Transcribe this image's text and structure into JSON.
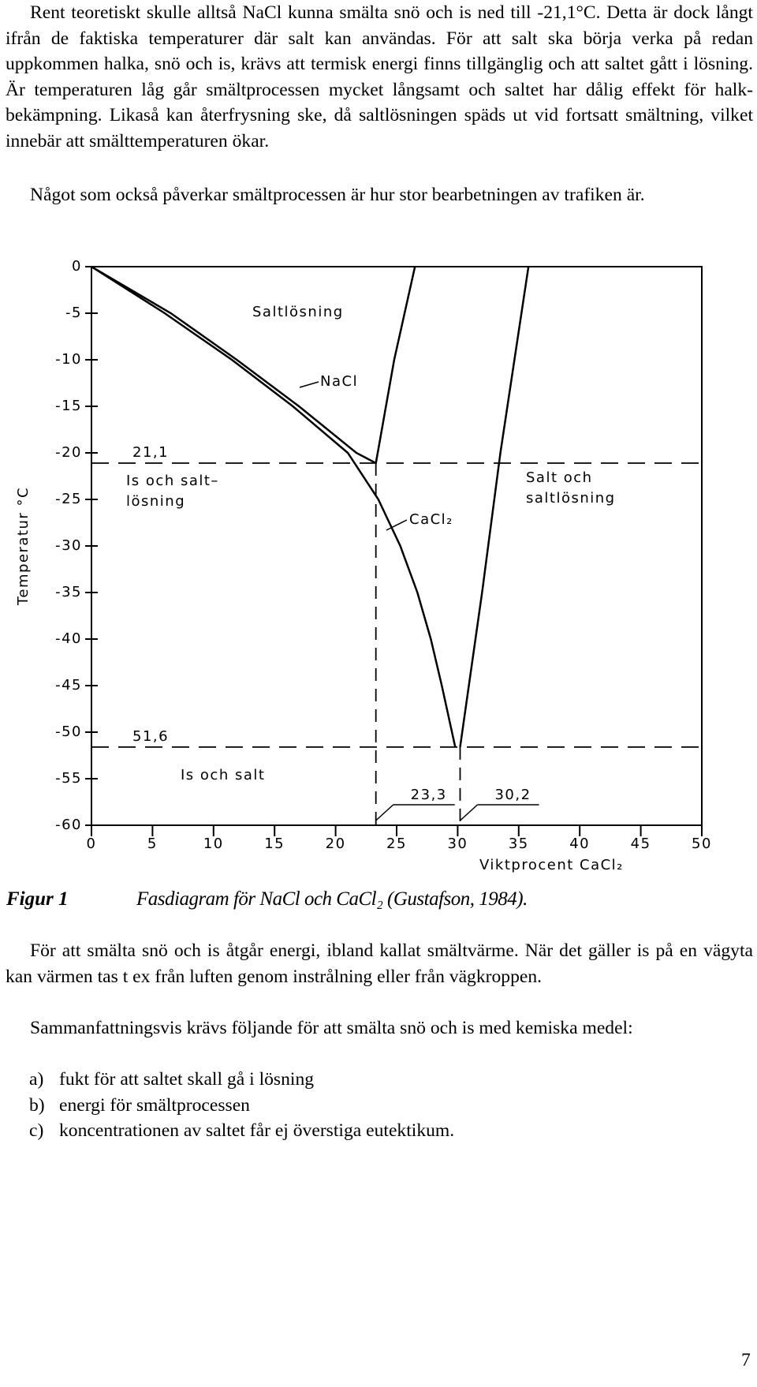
{
  "paragraphs_top": [
    "Rent teoretiskt skulle alltså NaCl kunna smälta snö och is ned till -21,1°C. Detta är dock långt ifrån de faktiska temperaturer där salt kan användas. För att salt ska börja verka på redan uppkommen halka, snö och is, krävs att termisk energi finns tillgänglig och att saltet gått i lösning. Är temperaturen låg går smältprocessen mycket långsamt och saltet har dålig effekt för halk-bekämpning. Likaså kan återfrysning ske, då saltlösningen späds ut vid fortsatt smältning, vilket innebär att smälttemperaturen ökar.",
    "Något som också påverkar smältprocessen är hur stor bearbetningen av trafiken är."
  ],
  "chart_data": {
    "type": "line",
    "xlabel": "Viktprocent CaCl₂",
    "ylabel": "Temperatur °C",
    "xlim": [
      0,
      50
    ],
    "ylim": [
      -60,
      0
    ],
    "xticks": [
      0,
      5,
      10,
      15,
      20,
      25,
      30,
      35,
      40,
      45,
      50
    ],
    "yticks": [
      0,
      -5,
      -10,
      -15,
      -20,
      -25,
      -30,
      -35,
      -40,
      -45,
      -50,
      -55,
      -60
    ],
    "color": "#000000",
    "series": [
      {
        "x": [
          0,
          6.5,
          11.9,
          17,
          21.7,
          23.3
        ],
        "values": [
          0,
          -5,
          -10,
          -15,
          -20,
          -21.1
        ]
      },
      {
        "x": [
          23.3,
          24.8,
          26.5
        ],
        "values": [
          -21.1,
          -10,
          0
        ]
      },
      {
        "x": [
          0,
          6,
          11.5,
          16.5,
          21,
          23.5,
          25.3,
          26.7,
          27.8,
          28.7,
          29.8
        ],
        "values": [
          0,
          -5,
          -10,
          -15,
          -20,
          -25,
          -30,
          -35,
          -40,
          -45,
          -51.6
        ]
      },
      {
        "x": [
          30.2,
          32,
          33.5,
          35.8
        ],
        "values": [
          -51.6,
          -35,
          -20,
          0
        ]
      }
    ],
    "eutectic_points": [
      {
        "x": 23.3,
        "y": -21.1,
        "x_label": "23,3",
        "y_label": "21,1"
      },
      {
        "x": 30.2,
        "y": -51.6,
        "x_label": "30,2",
        "y_label": "51,6"
      }
    ],
    "annotations": [
      "Saltlösning",
      "NaCl",
      "Is och salt–",
      "lösning",
      "Salt och",
      "saltlösning",
      "CaCl₂",
      "Is och salt"
    ]
  },
  "caption": {
    "label": "Figur 1",
    "text": "Fasdiagram för NaCl och CaCl₂ (Gustafson, 1984)."
  },
  "paragraphs_bottom": [
    "För att smälta snö och is åtgår energi, ibland kallat smältvärme. När det gäller is på en vägyta kan värmen tas t ex från luften genom instrålning eller från vägkroppen.",
    "Sammanfattningsvis krävs följande för att smälta snö och is med kemiska medel:"
  ],
  "list": [
    {
      "marker": "a)",
      "text": "fukt för att saltet skall gå i lösning"
    },
    {
      "marker": "b)",
      "text": "energi för smältprocessen"
    },
    {
      "marker": "c)",
      "text": "koncentrationen av saltet får ej överstiga eutektikum."
    }
  ],
  "page_number": "7"
}
